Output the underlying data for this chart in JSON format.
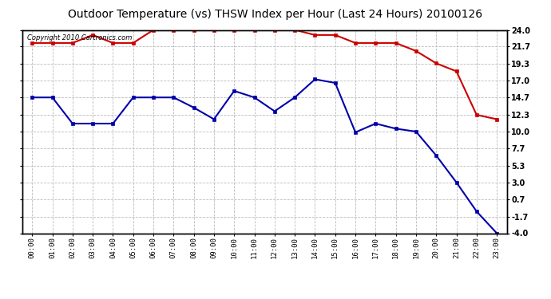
{
  "title": "Outdoor Temperature (vs) THSW Index per Hour (Last 24 Hours) 20100126",
  "copyright": "Copyright 2010 Cartronics.com",
  "hours": [
    "00:00",
    "01:00",
    "02:00",
    "03:00",
    "04:00",
    "05:00",
    "06:00",
    "07:00",
    "08:00",
    "09:00",
    "10:00",
    "11:00",
    "12:00",
    "13:00",
    "14:00",
    "15:00",
    "16:00",
    "17:00",
    "18:00",
    "19:00",
    "20:00",
    "21:00",
    "22:00",
    "23:00"
  ],
  "red_data": [
    22.2,
    22.2,
    22.2,
    23.3,
    22.2,
    22.2,
    24.0,
    24.0,
    24.0,
    24.0,
    24.0,
    24.0,
    24.0,
    24.0,
    23.3,
    23.3,
    22.2,
    22.2,
    22.2,
    21.1,
    19.4,
    18.3,
    12.3,
    11.7
  ],
  "blue_data": [
    14.7,
    14.7,
    11.1,
    11.1,
    11.1,
    14.7,
    14.7,
    14.7,
    13.3,
    11.7,
    15.6,
    14.7,
    12.8,
    14.7,
    17.2,
    16.7,
    9.9,
    11.1,
    10.4,
    10.0,
    6.7,
    3.0,
    -1.0,
    -4.0
  ],
  "red_color": "#cc0000",
  "blue_color": "#0000aa",
  "marker": "s",
  "marker_size": 3.0,
  "ylim_min": -4.0,
  "ylim_max": 24.0,
  "yticks": [
    24.0,
    21.7,
    19.3,
    17.0,
    14.7,
    12.3,
    10.0,
    7.7,
    5.3,
    3.0,
    0.7,
    -1.7,
    -4.0
  ],
  "bg_color": "#ffffff",
  "plot_bg_color": "#ffffff",
  "grid_color": "#bbbbbb",
  "title_fontsize": 10,
  "copyright_fontsize": 6,
  "line_width": 1.5
}
